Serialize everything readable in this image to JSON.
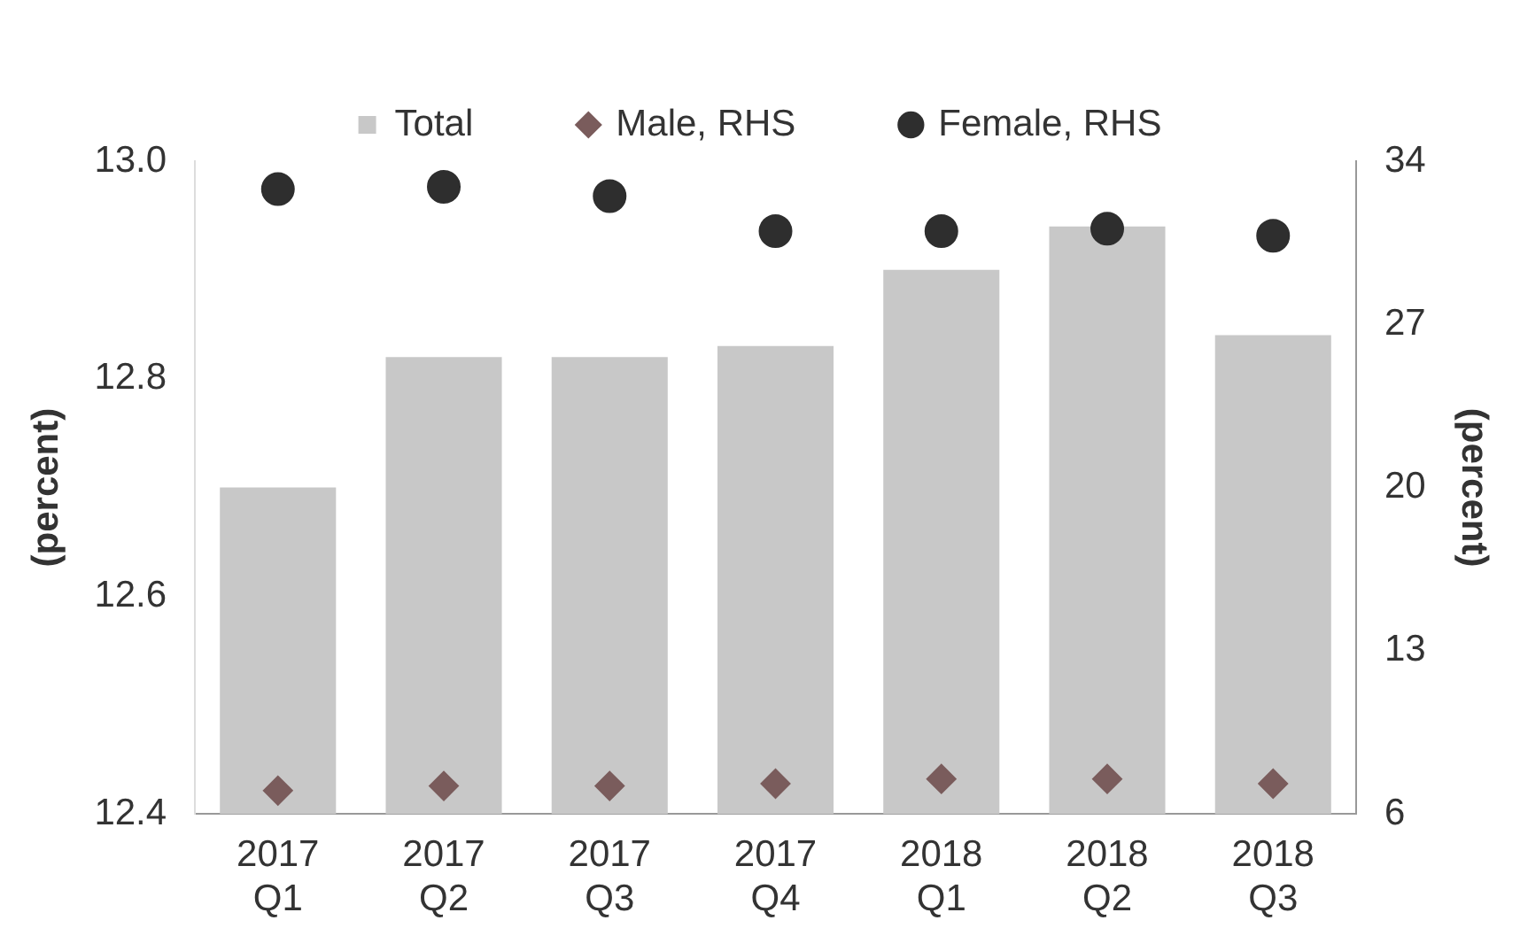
{
  "chart_data": {
    "type": "bar",
    "categories": [
      "2017 Q1",
      "2017 Q2",
      "2017 Q3",
      "2017 Q4",
      "2018 Q1",
      "2018 Q2",
      "2018 Q3"
    ],
    "series": [
      {
        "name": "Total",
        "color": "#c8c8c8",
        "values": [
          12.7,
          12.82,
          12.82,
          12.83,
          12.9,
          12.94,
          12.84
        ]
      },
      {
        "name": "Male, RHS",
        "type": "scatter",
        "axis": "y2",
        "marker": "diamond",
        "color": "#7a5c5c",
        "values": [
          7.0,
          7.2,
          7.2,
          7.3,
          7.5,
          7.5,
          7.3
        ]
      },
      {
        "name": "Female, RHS",
        "type": "scatter",
        "axis": "y2",
        "marker": "circle",
        "color": "#2e2e2e",
        "values": [
          32.8,
          32.9,
          32.5,
          31.0,
          31.0,
          31.1,
          30.8
        ]
      }
    ],
    "ylabel": "(percent)",
    "y2label": "(percent)",
    "ylim": [
      12.4,
      13.0
    ],
    "yticks": [
      12.4,
      12.6,
      12.8,
      {
        "value": 13.0,
        "label": "13.0"
      }
    ],
    "y2lim": [
      6,
      34
    ],
    "y2ticks": [
      6,
      13,
      20,
      27,
      34
    ],
    "legend": "top",
    "grid": false
  }
}
